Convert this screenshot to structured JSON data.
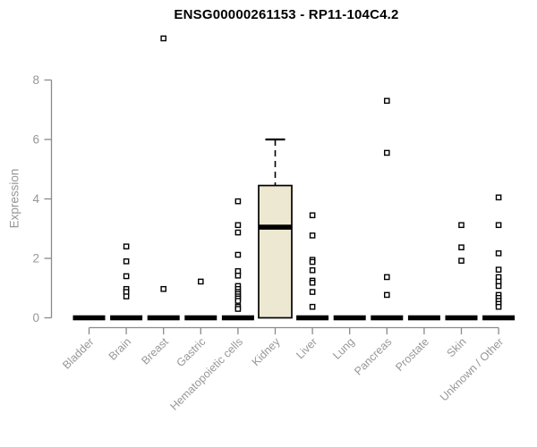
{
  "chart_data": {
    "type": "boxplot",
    "title": "ENSG00000261153 - RP11-104C4.2",
    "ylabel": "Expression",
    "xlabel": "",
    "yticks": [
      0,
      2,
      4,
      6,
      8
    ],
    "ylim": [
      0,
      9.6
    ],
    "grid": false,
    "legend": "none",
    "axis_color": "#8a8a8a",
    "tick_label_color": "#979797",
    "title_color": "#000000",
    "box_fill": "#ede8d1",
    "box_stroke": "#000000",
    "outlier_fill": "#ffffff",
    "categories": [
      "Bladder",
      "Brain",
      "Breast",
      "Gastric",
      "Hematopoietic cells",
      "Kidney",
      "Liver",
      "Lung",
      "Pancreas",
      "Prostate",
      "Skin",
      "Unknown / Other"
    ],
    "boxes": [
      {
        "category": "Bladder",
        "q1": 0,
        "median": 0,
        "q3": 0,
        "whisker_low": 0,
        "whisker_high": 0,
        "outliers": []
      },
      {
        "category": "Brain",
        "q1": 0,
        "median": 0,
        "q3": 0,
        "whisker_low": 0,
        "whisker_high": 0,
        "outliers": [
          2.4,
          1.9,
          1.4,
          0.97,
          0.87,
          0.72
        ]
      },
      {
        "category": "Breast",
        "q1": 0,
        "median": 0,
        "q3": 0,
        "whisker_low": 0,
        "whisker_high": 0,
        "outliers": [
          9.4,
          0.97
        ]
      },
      {
        "category": "Gastric",
        "q1": 0,
        "median": 0,
        "q3": 0,
        "whisker_low": 0,
        "whisker_high": 0,
        "outliers": [
          1.22
        ]
      },
      {
        "category": "Hematopoietic cells",
        "q1": 0,
        "median": 0,
        "q3": 0,
        "whisker_low": 0,
        "whisker_high": 0,
        "outliers": [
          3.92,
          3.12,
          2.87,
          2.12,
          1.57,
          1.42,
          1.07,
          0.97,
          0.87,
          0.8,
          0.72,
          0.65,
          0.57,
          0.37,
          0.3
        ]
      },
      {
        "category": "Kidney",
        "q1": 0,
        "median": 3.05,
        "q3": 4.45,
        "whisker_low": 0,
        "whisker_high": 6.0,
        "outliers": []
      },
      {
        "category": "Liver",
        "q1": 0,
        "median": 0,
        "q3": 0,
        "whisker_low": 0,
        "whisker_high": 0,
        "outliers": [
          3.45,
          2.77,
          1.95,
          1.88,
          1.6,
          1.25,
          1.18,
          0.87,
          0.37
        ]
      },
      {
        "category": "Lung",
        "q1": 0,
        "median": 0,
        "q3": 0,
        "whisker_low": 0,
        "whisker_high": 0,
        "outliers": []
      },
      {
        "category": "Pancreas",
        "q1": 0,
        "median": 0,
        "q3": 0,
        "whisker_low": 0,
        "whisker_high": 0,
        "outliers": [
          7.3,
          5.55,
          1.37,
          0.77
        ]
      },
      {
        "category": "Prostate",
        "q1": 0,
        "median": 0,
        "q3": 0,
        "whisker_low": 0,
        "whisker_high": 0,
        "outliers": []
      },
      {
        "category": "Skin",
        "q1": 0,
        "median": 0,
        "q3": 0,
        "whisker_low": 0,
        "whisker_high": 0,
        "outliers": [
          3.12,
          2.37,
          1.92
        ]
      },
      {
        "category": "Unknown / Other",
        "q1": 0,
        "median": 0,
        "q3": 0,
        "whisker_low": 0,
        "whisker_high": 0,
        "outliers": [
          4.05,
          3.12,
          2.17,
          1.62,
          1.37,
          1.22,
          1.07,
          0.77,
          0.67,
          0.57,
          0.47,
          0.37
        ]
      }
    ]
  }
}
